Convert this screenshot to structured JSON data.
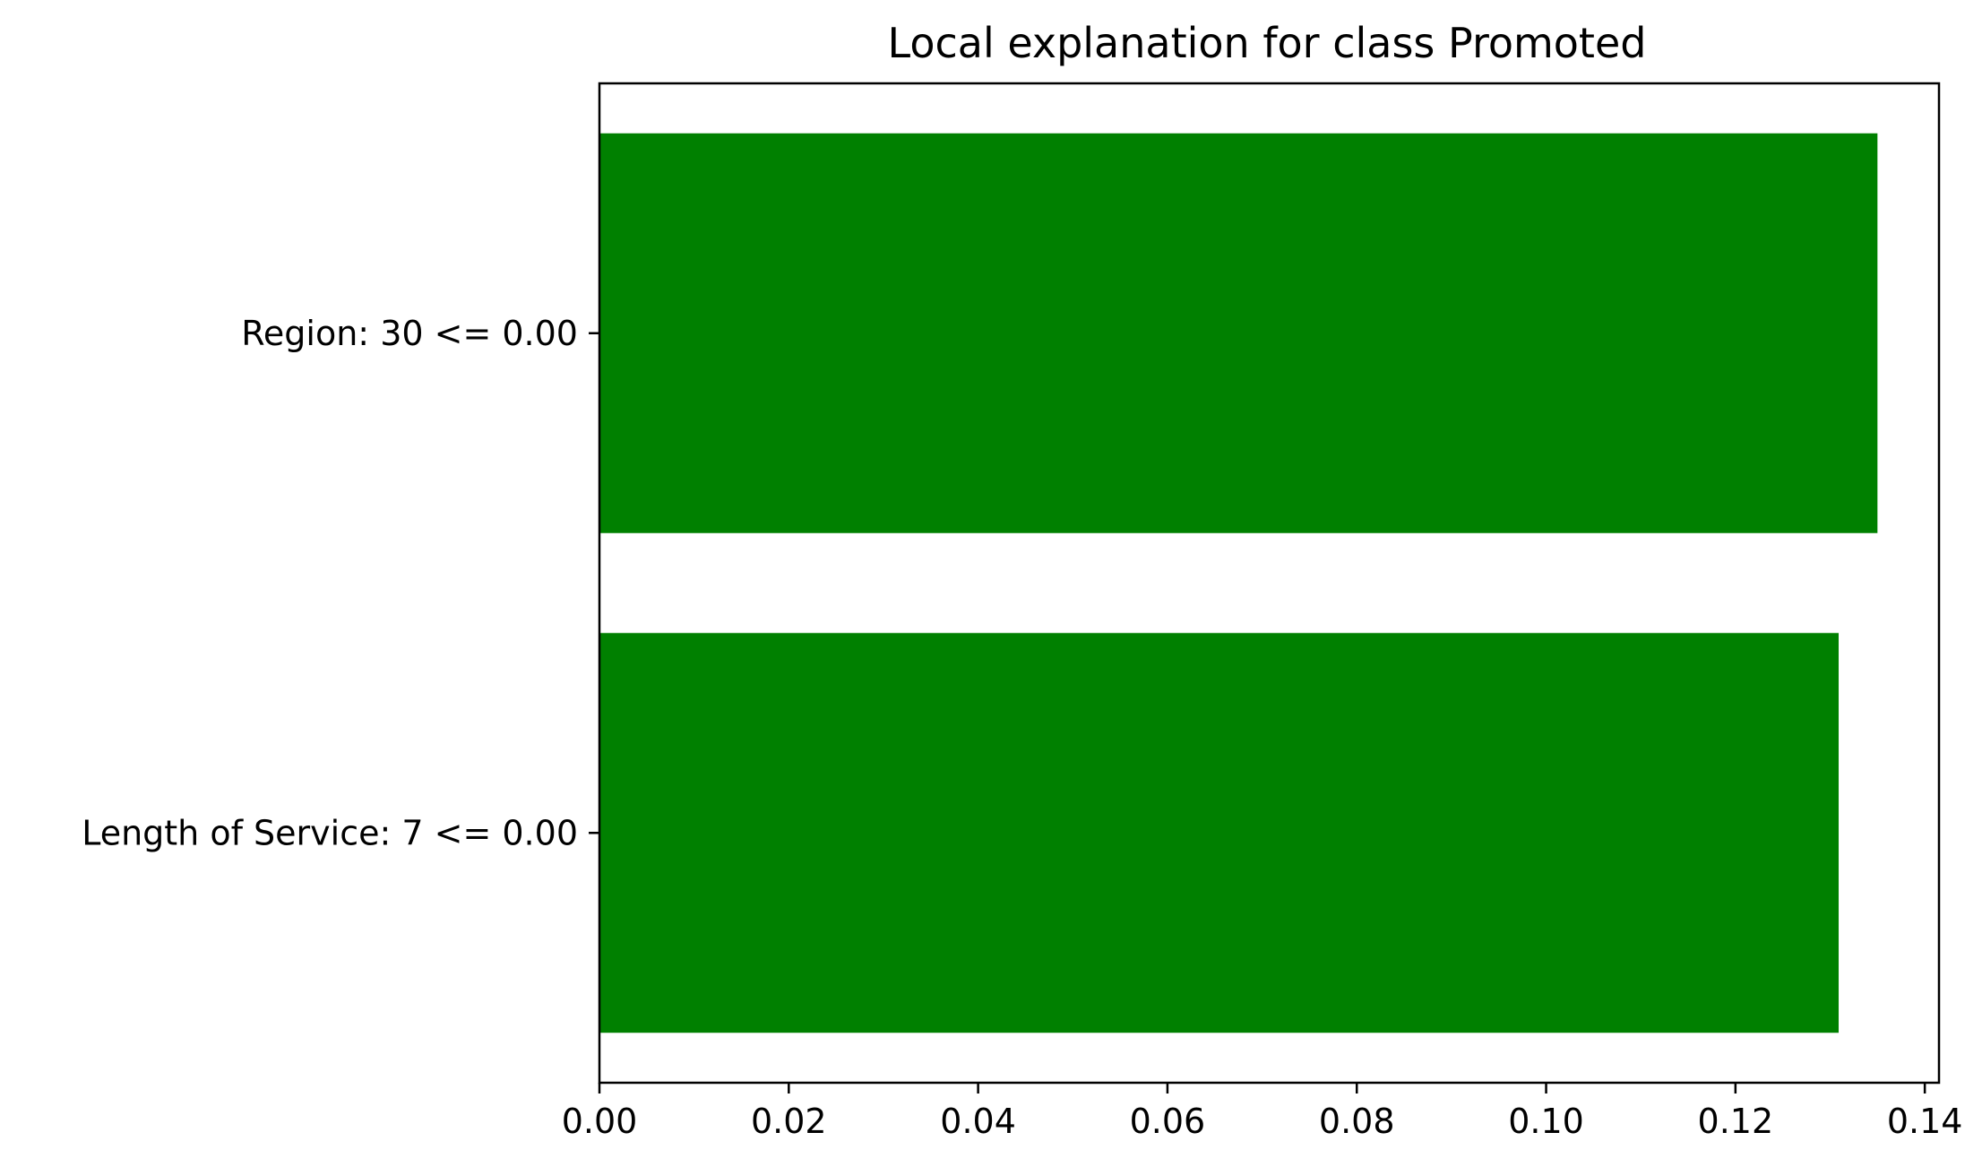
{
  "chart_data": {
    "type": "bar",
    "orientation": "horizontal",
    "title": "Local explanation for class Promoted",
    "xlabel": "",
    "ylabel": "",
    "categories": [
      "Region: 30 <= 0.00",
      "Length of Service: 7 <= 0.00"
    ],
    "values": [
      0.135,
      0.1309
    ],
    "xlim": [
      0.0,
      0.1415
    ],
    "xticks": [
      0.0,
      0.02,
      0.04,
      0.06,
      0.08,
      0.1,
      0.12,
      0.14
    ],
    "xtick_labels": [
      "0.00",
      "0.02",
      "0.04",
      "0.06",
      "0.08",
      "0.10",
      "0.12",
      "0.14"
    ],
    "grid": false,
    "legend": "none",
    "bar_color": "#008000"
  },
  "colors": {
    "bar": "#008000",
    "axis": "#000000",
    "background": "#ffffff"
  }
}
